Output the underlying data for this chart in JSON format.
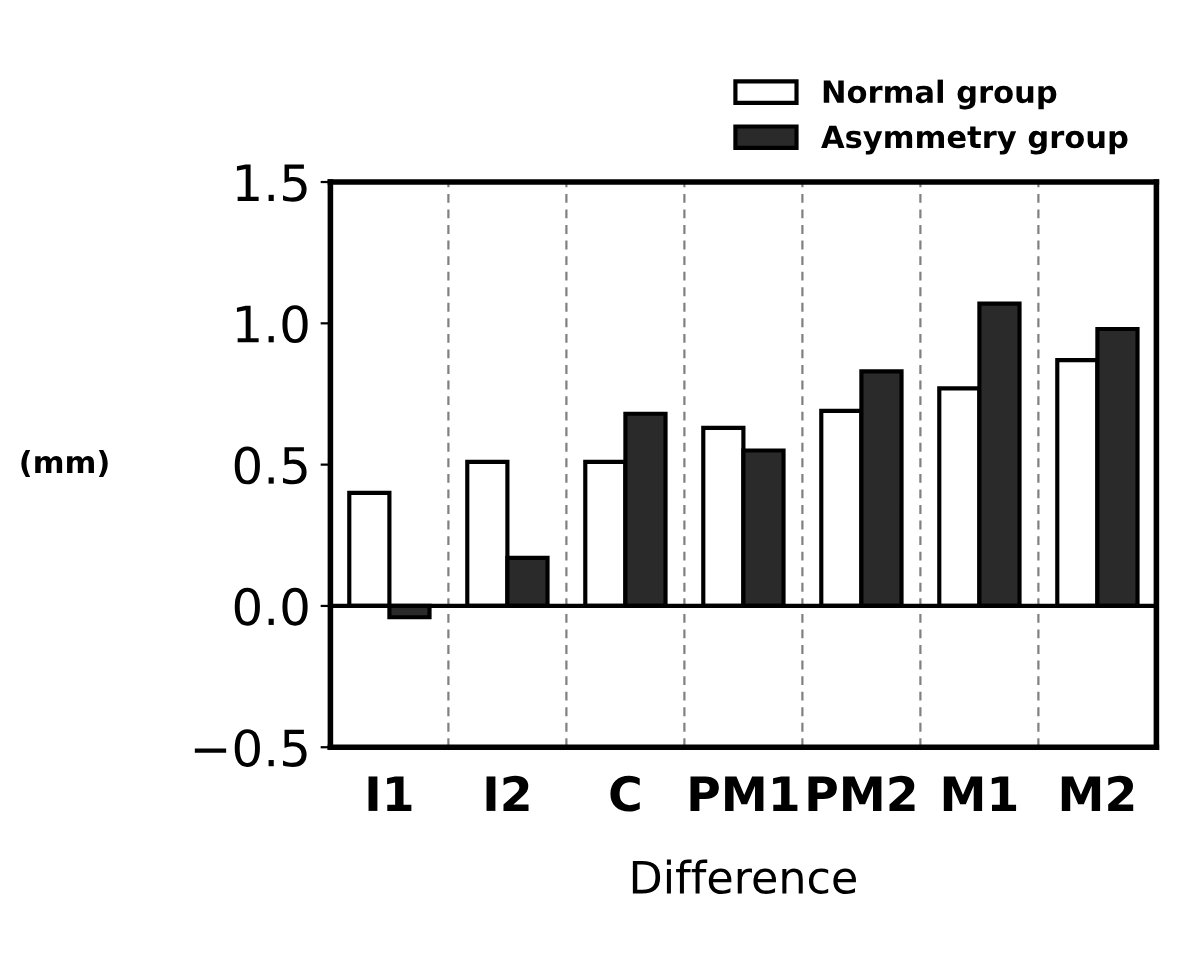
{
  "chart_data": {
    "type": "bar",
    "xlabel": "Difference",
    "ylabel": "(mm)",
    "categories": [
      "I1",
      "I2",
      "C",
      "PM1",
      "PM2",
      "M1",
      "M2"
    ],
    "series": [
      {
        "name": "Normal group",
        "color": "#ffffff",
        "values": [
          0.4,
          0.51,
          0.51,
          0.63,
          0.69,
          0.77,
          0.87
        ]
      },
      {
        "name": "Asymmetry group",
        "color": "#2a2a2a",
        "values": [
          -0.04,
          0.17,
          0.68,
          0.55,
          0.83,
          1.07,
          0.98
        ]
      }
    ],
    "ylim": [
      -0.5,
      1.5
    ],
    "yticks": [
      {
        "value": -0.5,
        "label": "−0.5"
      },
      {
        "value": 0,
        "label": "0.0"
      },
      {
        "value": 0.5,
        "label": "0.5"
      },
      {
        "value": 1,
        "label": "1.0"
      },
      {
        "value": 1.5,
        "label": "1.5"
      }
    ],
    "grid": "x",
    "legend": "top right"
  }
}
